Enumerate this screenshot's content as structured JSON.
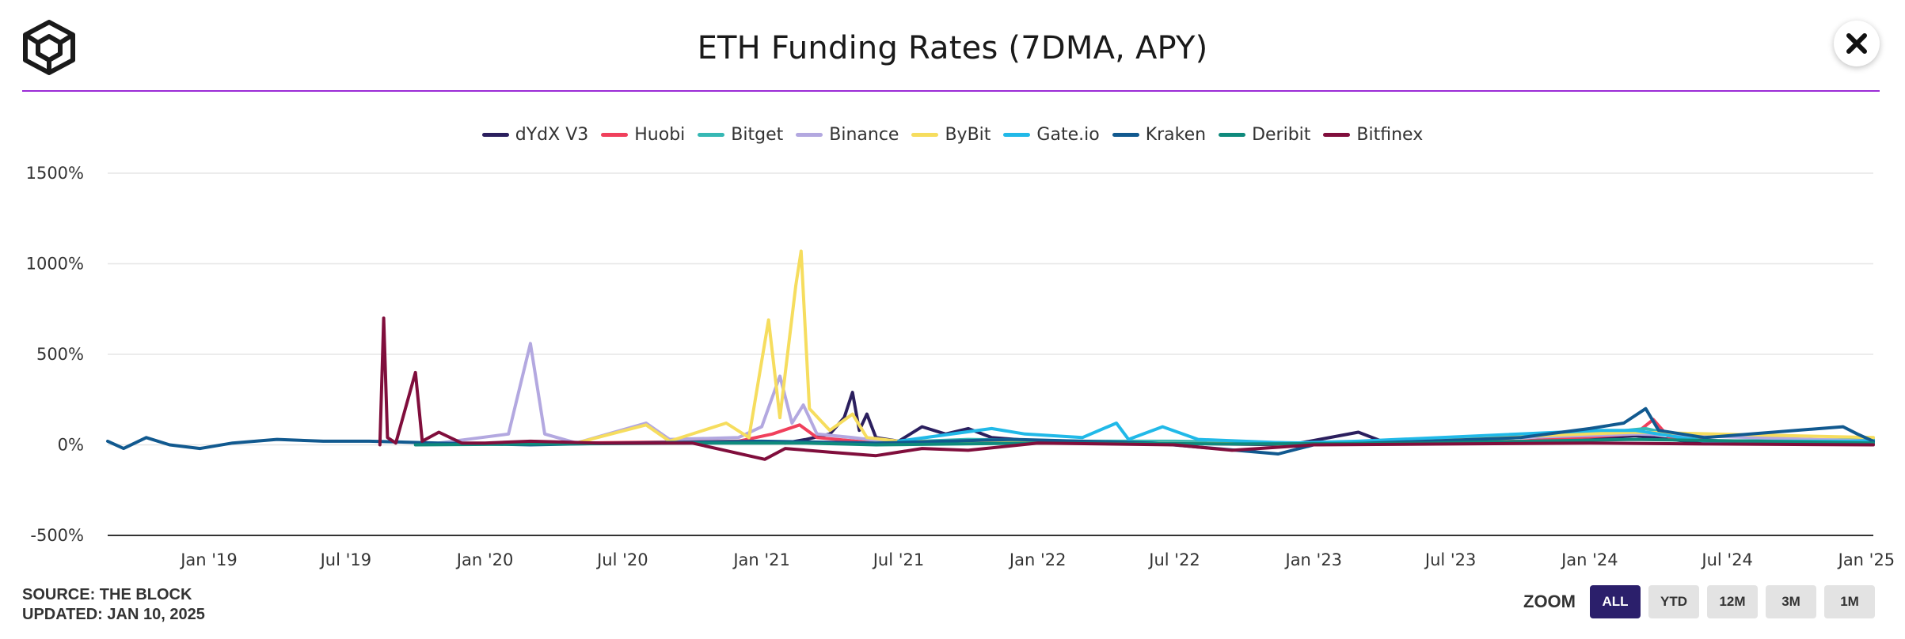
{
  "header": {
    "title": "ETH Funding Rates (7DMA, APY)",
    "close_icon": "close-icon",
    "logo_icon": "the-block-cube-logo"
  },
  "accent_color": "#9b2bd6",
  "footer": {
    "source": "SOURCE: THE BLOCK",
    "updated": "UPDATED: JAN 10, 2025"
  },
  "zoom": {
    "label": "ZOOM",
    "buttons": [
      "ALL",
      "YTD",
      "12M",
      "3M",
      "1M"
    ],
    "selected": "ALL"
  },
  "chart_data": {
    "type": "line",
    "title": "ETH Funding Rates (7DMA, APY)",
    "xlabel": "",
    "ylabel": "",
    "x_tick_labels": [
      "Jan '19",
      "Jul '19",
      "Jan '20",
      "Jul '20",
      "Jan '21",
      "Jul '21",
      "Jan '22",
      "Jul '22",
      "Jan '23",
      "Jul '23",
      "Jan '24",
      "Jul '24",
      "Jan '25"
    ],
    "y_tick_labels": [
      "-500%",
      "0%",
      "500%",
      "1000%",
      "1500%"
    ],
    "y_ticks": [
      -500,
      0,
      500,
      1000,
      1500
    ],
    "ylim": [
      -500,
      1500
    ],
    "xlim": [
      "2018-08-20",
      "2025-01-10"
    ],
    "legend_position": "top-center",
    "grid": true,
    "series": [
      {
        "name": "dYdX V3",
        "color": "#2b1f5e",
        "points": [
          [
            "2021-02-01",
            10
          ],
          [
            "2021-03-01",
            30
          ],
          [
            "2021-04-01",
            60
          ],
          [
            "2021-04-20",
            150
          ],
          [
            "2021-05-01",
            290
          ],
          [
            "2021-05-10",
            80
          ],
          [
            "2021-05-20",
            170
          ],
          [
            "2021-06-01",
            40
          ],
          [
            "2021-07-01",
            20
          ],
          [
            "2021-08-01",
            100
          ],
          [
            "2021-09-01",
            60
          ],
          [
            "2021-10-01",
            90
          ],
          [
            "2021-11-01",
            40
          ],
          [
            "2022-01-01",
            20
          ],
          [
            "2022-06-01",
            10
          ],
          [
            "2022-12-01",
            0
          ],
          [
            "2023-03-01",
            70
          ],
          [
            "2023-04-01",
            20
          ],
          [
            "2023-10-01",
            10
          ],
          [
            "2024-03-01",
            50
          ],
          [
            "2024-06-01",
            10
          ],
          [
            "2025-01-10",
            10
          ]
        ]
      },
      {
        "name": "Huobi",
        "color": "#f0405c",
        "points": [
          [
            "2020-05-01",
            10
          ],
          [
            "2020-08-01",
            15
          ],
          [
            "2020-12-01",
            20
          ],
          [
            "2021-01-15",
            60
          ],
          [
            "2021-02-20",
            110
          ],
          [
            "2021-03-15",
            40
          ],
          [
            "2021-06-01",
            10
          ],
          [
            "2022-01-01",
            10
          ],
          [
            "2022-07-01",
            10
          ],
          [
            "2023-01-01",
            5
          ],
          [
            "2023-10-01",
            20
          ],
          [
            "2024-03-01",
            60
          ],
          [
            "2024-03-25",
            140
          ],
          [
            "2024-04-15",
            40
          ],
          [
            "2024-08-01",
            10
          ],
          [
            "2025-01-10",
            20
          ]
        ]
      },
      {
        "name": "Bitget",
        "color": "#36b8b4",
        "points": [
          [
            "2021-06-01",
            10
          ],
          [
            "2021-10-01",
            30
          ],
          [
            "2022-03-01",
            20
          ],
          [
            "2022-07-01",
            20
          ],
          [
            "2023-01-01",
            10
          ],
          [
            "2023-06-01",
            15
          ],
          [
            "2024-01-01",
            60
          ],
          [
            "2024-03-15",
            90
          ],
          [
            "2024-06-01",
            20
          ],
          [
            "2025-01-10",
            30
          ]
        ]
      },
      {
        "name": "Binance",
        "color": "#b3a8e0",
        "points": [
          [
            "2019-11-01",
            10
          ],
          [
            "2020-02-01",
            60
          ],
          [
            "2020-03-01",
            560
          ],
          [
            "2020-03-20",
            60
          ],
          [
            "2020-05-01",
            10
          ],
          [
            "2020-08-01",
            120
          ],
          [
            "2020-09-01",
            30
          ],
          [
            "2020-12-01",
            40
          ],
          [
            "2021-01-01",
            100
          ],
          [
            "2021-01-25",
            380
          ],
          [
            "2021-02-10",
            120
          ],
          [
            "2021-02-25",
            220
          ],
          [
            "2021-03-15",
            60
          ],
          [
            "2021-05-01",
            40
          ],
          [
            "2021-07-01",
            10
          ],
          [
            "2022-01-01",
            10
          ],
          [
            "2023-01-01",
            5
          ],
          [
            "2024-03-01",
            60
          ],
          [
            "2025-01-10",
            20
          ]
        ]
      },
      {
        "name": "ByBit",
        "color": "#f6dd5e",
        "points": [
          [
            "2020-05-01",
            10
          ],
          [
            "2020-08-01",
            110
          ],
          [
            "2020-09-01",
            20
          ],
          [
            "2020-11-15",
            120
          ],
          [
            "2020-12-15",
            40
          ],
          [
            "2021-01-10",
            690
          ],
          [
            "2021-01-25",
            150
          ],
          [
            "2021-02-15",
            880
          ],
          [
            "2021-02-22",
            1070
          ],
          [
            "2021-03-05",
            200
          ],
          [
            "2021-04-01",
            80
          ],
          [
            "2021-05-01",
            170
          ],
          [
            "2021-05-20",
            40
          ],
          [
            "2021-07-01",
            20
          ],
          [
            "2022-01-01",
            10
          ],
          [
            "2023-01-01",
            5
          ],
          [
            "2024-03-01",
            70
          ],
          [
            "2025-01-10",
            40
          ]
        ]
      },
      {
        "name": "Gate.io",
        "color": "#21b9e8",
        "points": [
          [
            "2021-07-01",
            20
          ],
          [
            "2021-11-01",
            90
          ],
          [
            "2021-12-15",
            60
          ],
          [
            "2022-03-01",
            40
          ],
          [
            "2022-04-15",
            120
          ],
          [
            "2022-05-01",
            30
          ],
          [
            "2022-06-15",
            100
          ],
          [
            "2022-08-01",
            30
          ],
          [
            "2022-12-01",
            10
          ],
          [
            "2023-03-01",
            20
          ],
          [
            "2024-01-15",
            80
          ],
          [
            "2024-03-01",
            80
          ],
          [
            "2024-06-01",
            20
          ],
          [
            "2025-01-10",
            20
          ]
        ]
      },
      {
        "name": "Kraken",
        "color": "#11598f",
        "points": [
          [
            "2018-08-20",
            20
          ],
          [
            "2018-09-10",
            -20
          ],
          [
            "2018-10-10",
            40
          ],
          [
            "2018-11-10",
            0
          ],
          [
            "2018-12-20",
            -20
          ],
          [
            "2019-02-01",
            10
          ],
          [
            "2019-04-01",
            30
          ],
          [
            "2019-06-01",
            20
          ],
          [
            "2019-08-01",
            20
          ],
          [
            "2019-11-01",
            10
          ],
          [
            "2020-03-01",
            0
          ],
          [
            "2020-07-01",
            10
          ],
          [
            "2021-01-01",
            20
          ],
          [
            "2021-06-01",
            10
          ],
          [
            "2021-12-01",
            30
          ],
          [
            "2022-06-01",
            10
          ],
          [
            "2022-11-15",
            -50
          ],
          [
            "2023-01-01",
            0
          ],
          [
            "2023-06-01",
            20
          ],
          [
            "2023-10-01",
            40
          ],
          [
            "2024-01-01",
            90
          ],
          [
            "2024-02-15",
            120
          ],
          [
            "2024-03-15",
            200
          ],
          [
            "2024-04-01",
            80
          ],
          [
            "2024-06-01",
            40
          ],
          [
            "2024-12-01",
            100
          ],
          [
            "2024-12-20",
            60
          ],
          [
            "2025-01-10",
            20
          ]
        ]
      },
      {
        "name": "Deribit",
        "color": "#0f8a7c",
        "points": [
          [
            "2019-10-01",
            0
          ],
          [
            "2020-04-01",
            5
          ],
          [
            "2020-10-01",
            10
          ],
          [
            "2021-03-01",
            10
          ],
          [
            "2021-06-01",
            0
          ],
          [
            "2022-01-01",
            10
          ],
          [
            "2022-10-01",
            5
          ],
          [
            "2023-06-01",
            10
          ],
          [
            "2024-03-01",
            30
          ],
          [
            "2025-01-10",
            10
          ]
        ]
      },
      {
        "name": "Bitfinex",
        "color": "#800e3c",
        "points": [
          [
            "2019-08-15",
            0
          ],
          [
            "2019-08-20",
            700
          ],
          [
            "2019-08-25",
            40
          ],
          [
            "2019-09-05",
            10
          ],
          [
            "2019-10-01",
            400
          ],
          [
            "2019-10-10",
            20
          ],
          [
            "2019-11-01",
            70
          ],
          [
            "2019-12-01",
            10
          ],
          [
            "2020-01-01",
            10
          ],
          [
            "2020-03-01",
            20
          ],
          [
            "2020-06-01",
            10
          ],
          [
            "2020-10-01",
            10
          ],
          [
            "2021-01-05",
            -80
          ],
          [
            "2021-02-01",
            -20
          ],
          [
            "2021-04-01",
            -40
          ],
          [
            "2021-06-01",
            -60
          ],
          [
            "2021-08-01",
            -20
          ],
          [
            "2021-10-01",
            -30
          ],
          [
            "2022-01-01",
            10
          ],
          [
            "2022-07-01",
            0
          ],
          [
            "2022-09-15",
            -30
          ],
          [
            "2023-01-01",
            0
          ],
          [
            "2024-01-01",
            10
          ],
          [
            "2024-06-01",
            5
          ],
          [
            "2025-01-10",
            0
          ]
        ]
      }
    ]
  }
}
